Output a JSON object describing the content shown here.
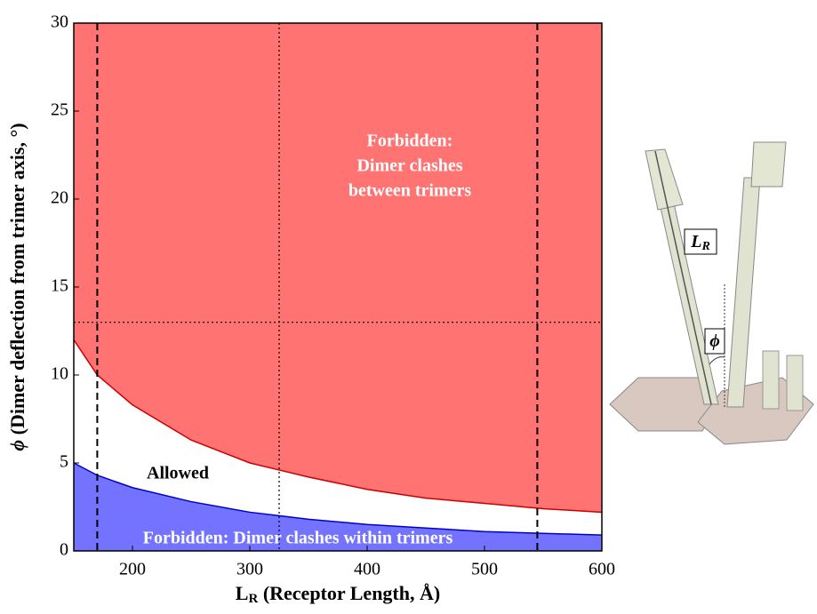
{
  "chart_data": {
    "type": "area",
    "x_label": "L",
    "x_label_sub": "R",
    "x_label_rest": " (Receptor Length, Å)",
    "y_label_symbol": "ϕ",
    "y_label_rest": " (Dimer deflection from trimer axis, °)",
    "x": [
      150,
      170,
      200,
      250,
      300,
      325,
      350,
      400,
      450,
      500,
      550,
      600
    ],
    "series": [
      {
        "color": "#ff7373",
        "line_color": "#cc0000",
        "fill": "above",
        "values": [
          12.0,
          10.0,
          8.3,
          6.3,
          5.0,
          4.6,
          4.2,
          3.5,
          3.0,
          2.7,
          2.4,
          2.2
        ]
      },
      {
        "color": "#7373ff",
        "line_color": "#0000cc",
        "fill": "below",
        "values": [
          5.0,
          4.3,
          3.6,
          2.8,
          2.2,
          2.0,
          1.8,
          1.5,
          1.3,
          1.1,
          1.0,
          0.9
        ]
      }
    ],
    "xlim": [
      150,
      600
    ],
    "xticks": [
      200,
      300,
      400,
      500,
      600
    ],
    "ylim": [
      0,
      30
    ],
    "yticks": [
      0,
      5,
      10,
      15,
      20,
      25,
      30
    ],
    "vlines": [
      {
        "value": 170,
        "style": "dashed"
      },
      {
        "value": 325,
        "style": "dotted"
      },
      {
        "value": 545,
        "style": "dashed"
      }
    ],
    "hlines": [
      {
        "value": 13,
        "style": "dotted"
      }
    ],
    "annotations": [
      {
        "text": "Forbidden:",
        "color": "#ffffff"
      },
      {
        "text": "Dimer clashes",
        "color": "#ffffff"
      },
      {
        "text": "between trimers",
        "color": "#ffffff"
      },
      {
        "text": "Allowed",
        "color": "#000000"
      },
      {
        "text": "Forbidden: Dimer clashes within trimers",
        "color": "#ffffff"
      }
    ]
  },
  "illustration": {
    "length_label": "L",
    "length_label_sub": "R",
    "angle_label": "ϕ"
  }
}
